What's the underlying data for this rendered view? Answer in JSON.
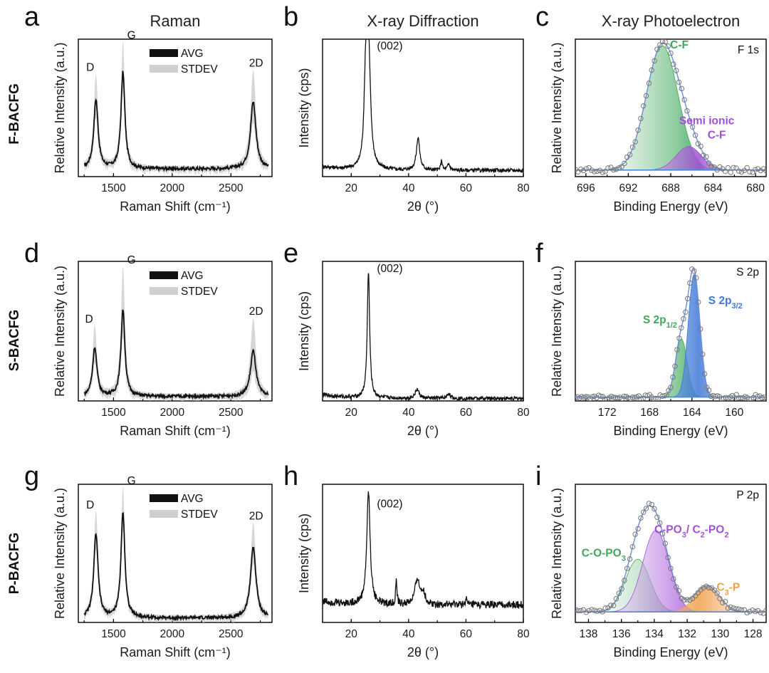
{
  "figure": {
    "column_titles": [
      "Raman",
      "X-ray Diffraction",
      "X-ray Photoelectron"
    ],
    "row_labels": [
      "F-BACFG",
      "S-BACFG",
      "P-BACFG"
    ]
  },
  "colors": {
    "avg": "#111111",
    "stdev": "#cfcfcf",
    "green": "#3fa85a",
    "purple": "#a24fd6",
    "blue": "#3f78d8",
    "orange": "#f0a04a",
    "baseline": "#4a8ad8"
  },
  "chart_data": [
    {
      "panel": "a",
      "type": "line",
      "title": "",
      "xlabel": "Raman Shift (cm⁻¹)",
      "ylabel": "Relative Intensity (a.u.)",
      "xlim": [
        1200,
        2850
      ],
      "ylim": [
        0,
        1.25
      ],
      "xticks": [
        1500,
        2000,
        2500
      ],
      "legend": [
        "AVG",
        "STDEV"
      ],
      "legend_position": "top-center",
      "peaks": [
        {
          "label": "D",
          "x": 1350,
          "avg": 0.7,
          "stdev_top": 0.91
        },
        {
          "label": "G",
          "x": 1580,
          "avg": 0.95,
          "stdev_top": 1.2
        },
        {
          "label": "2D",
          "x": 2690,
          "avg": 0.68,
          "stdev_top": 0.95
        }
      ],
      "baseline": 0.07
    },
    {
      "panel": "b",
      "type": "line",
      "title": "",
      "xlabel": "2θ (°)",
      "ylabel": "Intensity (cps)",
      "xlim": [
        10,
        80
      ],
      "ylim": [
        0,
        1.1
      ],
      "xticks": [
        20,
        40,
        60,
        80
      ],
      "annotations": [
        {
          "text": "(002)",
          "x": 26.0
        }
      ],
      "peaks": [
        {
          "x": 26.0,
          "y": 1.0,
          "width": 0.8
        },
        {
          "x": 25.0,
          "y": 0.62,
          "width": 0.6
        },
        {
          "x": 43.3,
          "y": 0.26,
          "width": 0.7
        },
        {
          "x": 51.5,
          "y": 0.08,
          "width": 0.3
        },
        {
          "x": 54.0,
          "y": 0.05,
          "width": 0.5
        }
      ],
      "baseline": 0.05
    },
    {
      "panel": "c",
      "type": "scatter",
      "title": "",
      "xlabel": "Binding Energy (eV)",
      "ylabel": "Relative Intensity (a.u.)",
      "xlim": [
        697,
        679
      ],
      "ylim": [
        0,
        1.05
      ],
      "xticks": [
        696,
        692,
        688,
        684,
        680
      ],
      "corner_label": "F 1s",
      "components": [
        {
          "name": "C-F",
          "center": 688.8,
          "height": 0.95,
          "width": 1.5,
          "color": "green"
        },
        {
          "name": "Semi ionic C-F",
          "center": 686.3,
          "height": 0.18,
          "width": 1.2,
          "color": "purple"
        }
      ],
      "baseline": 0.05
    },
    {
      "panel": "d",
      "type": "line",
      "title": "",
      "xlabel": "Raman Shift (cm⁻¹)",
      "ylabel": "Relative Intensity (a.u.)",
      "xlim": [
        1200,
        2850
      ],
      "ylim": [
        0,
        1.25
      ],
      "xticks": [
        1500,
        2000,
        2500
      ],
      "legend": [
        "AVG",
        "STDEV"
      ],
      "legend_position": "top-center",
      "peaks": [
        {
          "label": "D",
          "x": 1340,
          "avg": 0.48,
          "stdev_top": 0.65
        },
        {
          "label": "G",
          "x": 1580,
          "avg": 0.82,
          "stdev_top": 1.18
        },
        {
          "label": "2D",
          "x": 2690,
          "avg": 0.45,
          "stdev_top": 0.72
        }
      ],
      "baseline": 0.04
    },
    {
      "panel": "e",
      "type": "line",
      "title": "",
      "xlabel": "2θ (°)",
      "ylabel": "Intensity (cps)",
      "xlim": [
        10,
        80
      ],
      "ylim": [
        0,
        1.1
      ],
      "xticks": [
        20,
        40,
        60,
        80
      ],
      "annotations": [
        {
          "text": "(002)",
          "x": 26.0
        }
      ],
      "peaks": [
        {
          "x": 26.0,
          "y": 1.0,
          "width": 0.5
        },
        {
          "x": 43.0,
          "y": 0.07,
          "width": 0.8
        },
        {
          "x": 54.0,
          "y": 0.04,
          "width": 0.6
        }
      ],
      "baseline": 0.02
    },
    {
      "panel": "f",
      "type": "scatter",
      "title": "",
      "xlabel": "Binding Energy (eV)",
      "ylabel": "Relative Intensity (a.u.)",
      "xlim": [
        175,
        157
      ],
      "ylim": [
        0,
        1.08
      ],
      "xticks": [
        172,
        168,
        164,
        160
      ],
      "corner_label": "S 2p",
      "components": [
        {
          "name": "S 2p1/2",
          "name_main": "S 2p",
          "name_sub": "1/2",
          "center": 165.0,
          "height": 0.45,
          "width": 0.55,
          "color": "green"
        },
        {
          "name": "S 2p3/2",
          "name_main": "S 2p",
          "name_sub": "3/2",
          "center": 163.8,
          "height": 0.95,
          "width": 0.55,
          "color": "blue"
        }
      ],
      "baseline": 0.03
    },
    {
      "panel": "g",
      "type": "line",
      "title": "",
      "xlabel": "Raman Shift (cm⁻¹)",
      "ylabel": "Relative Intensity (a.u.)",
      "xlim": [
        1200,
        2850
      ],
      "ylim": [
        0,
        1.25
      ],
      "xticks": [
        1500,
        2000,
        2500
      ],
      "legend": [
        "AVG",
        "STDEV"
      ],
      "legend_position": "top-center",
      "peaks": [
        {
          "label": "D",
          "x": 1350,
          "avg": 0.8,
          "stdev_top": 0.98
        },
        {
          "label": "G",
          "x": 1580,
          "avg": 1.0,
          "stdev_top": 1.2
        },
        {
          "label": "2D",
          "x": 2690,
          "avg": 0.68,
          "stdev_top": 0.88
        }
      ],
      "baseline": 0.04
    },
    {
      "panel": "h",
      "type": "line",
      "title": "",
      "xlabel": "2θ (°)",
      "ylabel": "Intensity (cps)",
      "xlim": [
        10,
        80
      ],
      "ylim": [
        0,
        1.1
      ],
      "xticks": [
        20,
        40,
        60,
        80
      ],
      "annotations": [
        {
          "text": "(002)",
          "x": 26.0
        }
      ],
      "peaks": [
        {
          "x": 26.0,
          "y": 0.9,
          "width": 0.7
        },
        {
          "x": 35.7,
          "y": 0.2,
          "width": 0.25
        },
        {
          "x": 43.0,
          "y": 0.2,
          "width": 0.9
        },
        {
          "x": 45.0,
          "y": 0.1,
          "width": 0.8
        },
        {
          "x": 60.0,
          "y": 0.05,
          "width": 0.3
        }
      ],
      "baseline": 0.14
    },
    {
      "panel": "i",
      "type": "scatter",
      "title": "",
      "xlabel": "Binding Energy (eV)",
      "ylabel": "Relative Intensity (a.u.)",
      "xlim": [
        138.8,
        127.2
      ],
      "ylim": [
        0,
        1.05
      ],
      "xticks": [
        138,
        136,
        134,
        132,
        130,
        128
      ],
      "corner_label": "P 2p",
      "components": [
        {
          "name": "C-O-PO3",
          "name_main": "C-O-PO",
          "name_sub": "3",
          "center": 135.0,
          "height": 0.4,
          "width": 0.75,
          "color": "green"
        },
        {
          "name": "C-PO3/ C2-PO2",
          "center": 133.9,
          "height": 0.62,
          "width": 0.8,
          "color": "purple"
        },
        {
          "name": "C3-P",
          "name_main": "C",
          "name_sub": "3",
          "name_tail": "-P",
          "center": 130.8,
          "height": 0.2,
          "width": 0.75,
          "color": "orange"
        }
      ],
      "baseline": 0.08
    }
  ]
}
